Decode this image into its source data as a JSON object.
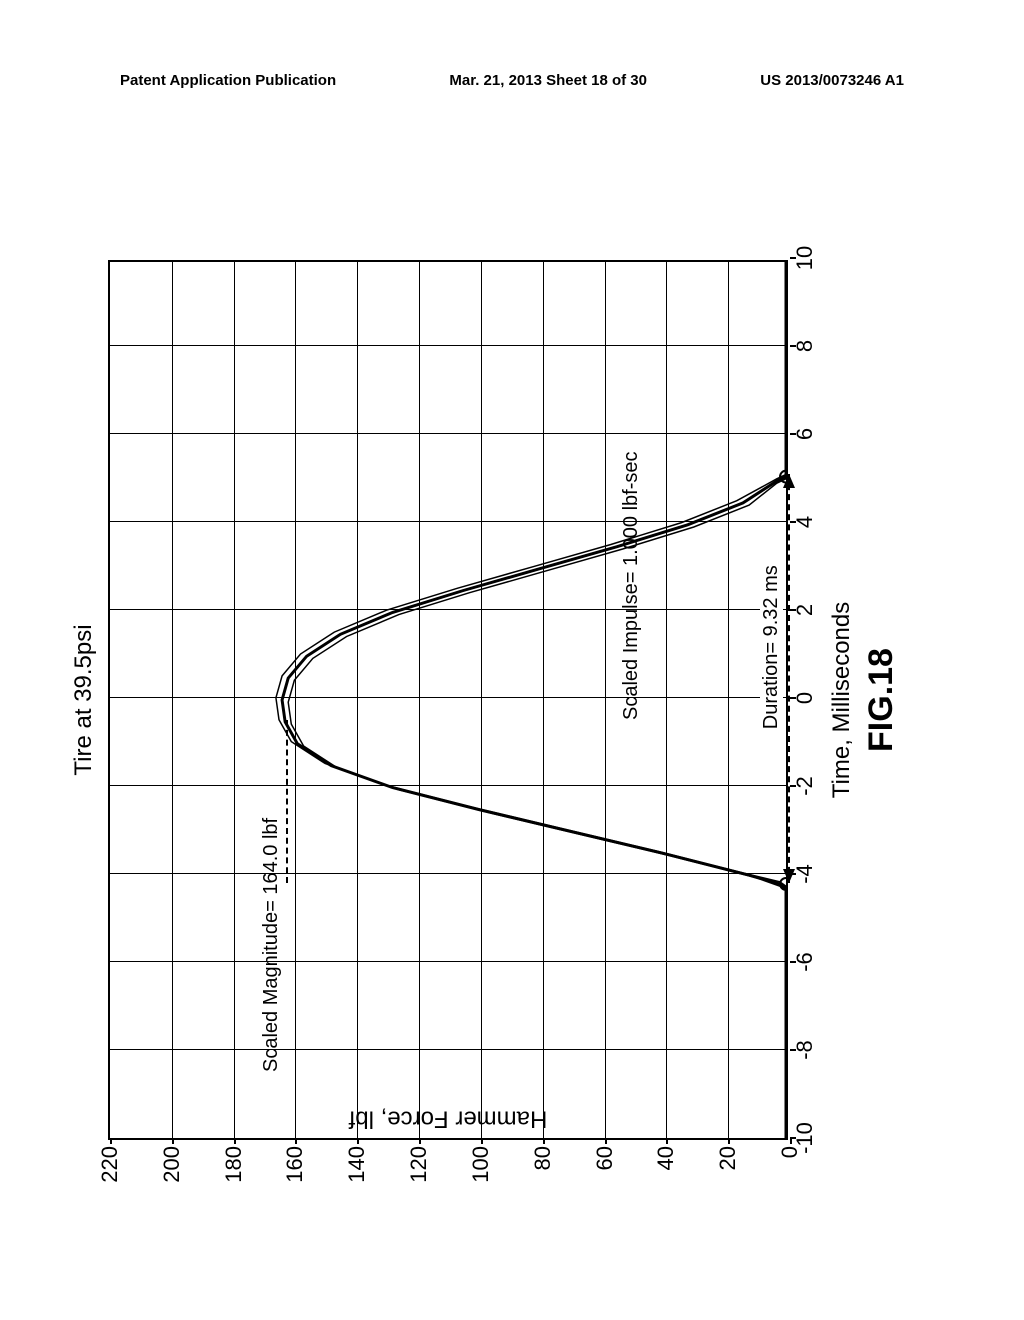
{
  "header": {
    "left": "Patent Application Publication",
    "center": "Mar. 21, 2013  Sheet 18 of 30",
    "right": "US 2013/0073246 A1"
  },
  "chart": {
    "type": "line",
    "title": "Tire  at  39.5psi",
    "xlabel": "Time,  Milliseconds",
    "ylabel": "Hammer  Force,  lbf",
    "figure_label": "FIG.18",
    "xlim": [
      -10,
      10
    ],
    "ylim": [
      0,
      220
    ],
    "xtick_step": 2,
    "ytick_step": 20,
    "xticks": [
      -10,
      -8,
      -6,
      -4,
      -2,
      0,
      2,
      4,
      6,
      8,
      10
    ],
    "yticks": [
      0,
      20,
      40,
      60,
      80,
      100,
      120,
      140,
      160,
      180,
      200,
      220
    ],
    "background_color": "#ffffff",
    "grid_color": "#000000",
    "curve_color": "#000000",
    "curve_width": 3,
    "annotations": {
      "magnitude": "Scaled Magnitude=  164.0  lbf",
      "impulse": "Scaled Impulse=  1.000  lbf-sec",
      "duration": "Duration=  9.32  ms"
    },
    "duration_arrow": {
      "x_start": -4.2,
      "x_end": 5.1,
      "y": 0
    },
    "curve_points": [
      [
        -10,
        0
      ],
      [
        -9,
        0
      ],
      [
        -8,
        0
      ],
      [
        -7,
        0
      ],
      [
        -6,
        0
      ],
      [
        -5,
        0
      ],
      [
        -4.3,
        0
      ],
      [
        -4.2,
        2
      ],
      [
        -4,
        12
      ],
      [
        -3.5,
        40
      ],
      [
        -3,
        70
      ],
      [
        -2.5,
        100
      ],
      [
        -2,
        128
      ],
      [
        -1.5,
        148
      ],
      [
        -1,
        159
      ],
      [
        -0.5,
        163
      ],
      [
        0,
        164
      ],
      [
        0.5,
        162
      ],
      [
        1,
        156
      ],
      [
        1.5,
        145
      ],
      [
        2,
        128
      ],
      [
        2.5,
        105
      ],
      [
        3,
        80
      ],
      [
        3.5,
        55
      ],
      [
        4,
        32
      ],
      [
        4.5,
        14
      ],
      [
        5,
        3
      ],
      [
        5.1,
        0
      ],
      [
        6,
        0
      ],
      [
        7,
        0
      ],
      [
        8,
        0
      ],
      [
        9,
        0
      ],
      [
        10,
        0
      ]
    ]
  }
}
